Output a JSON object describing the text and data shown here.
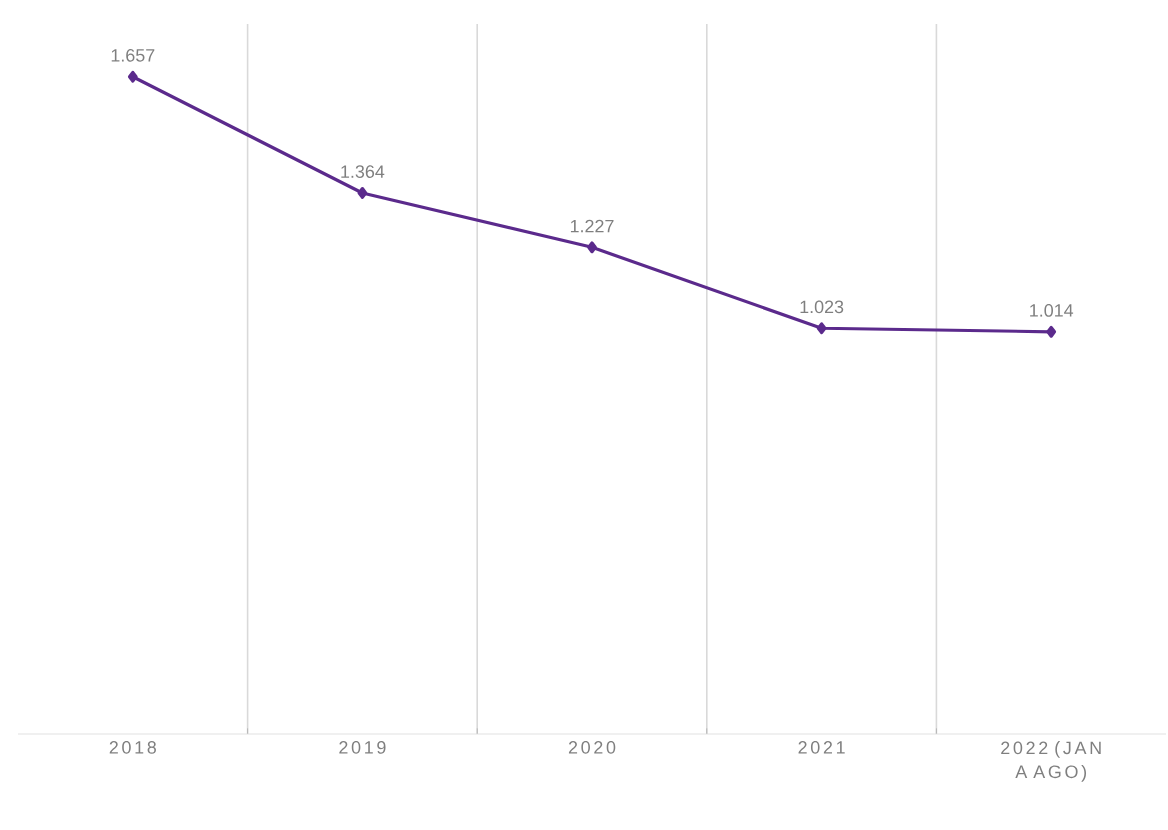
{
  "chart_data": {
    "type": "line",
    "categories": [
      "2018",
      "2019",
      "2020",
      "2021",
      "2022 (JAN A AGO)"
    ],
    "values": [
      1.657,
      1.364,
      1.227,
      1.023,
      1.014
    ],
    "color": "#5b2a8c",
    "ylim": [
      0,
      1.79
    ],
    "data_labels": true,
    "marker": "diamond",
    "grid": "x",
    "tick_labels": "x"
  }
}
